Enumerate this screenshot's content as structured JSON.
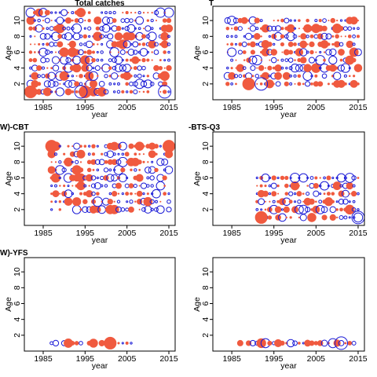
{
  "colors": {
    "positive": "#f05a3f",
    "negative": "#1a1ad6"
  },
  "chart_data": [
    {
      "type": "scatter",
      "title": "Total catches",
      "xlabel": "year",
      "ylabel": "Age",
      "xticks": [
        1985,
        1995,
        2005,
        2015
      ],
      "yticks": [
        2,
        4,
        6,
        8,
        10
      ],
      "xlim": [
        1980.5,
        2016.5
      ],
      "ylim": [
        0,
        11.8
      ],
      "years": [
        1982,
        2015
      ],
      "ages": [
        1,
        11
      ],
      "density": 0.9,
      "posprob": 0.5,
      "seed": 11,
      "big": [
        [
          1982,
          1,
          1
        ],
        [
          1995,
          1,
          1
        ],
        [
          2014,
          1,
          -1
        ],
        [
          1994,
          1,
          -1
        ]
      ]
    },
    {
      "type": "scatter",
      "title": "T",
      "xlabel": "year",
      "ylabel": "Age",
      "xticks": [
        1985,
        1995,
        2005,
        2015
      ],
      "yticks": [
        2,
        4,
        6,
        8,
        10
      ],
      "xlim": [
        1980.5,
        2016.5
      ],
      "ylim": [
        0,
        11.8
      ],
      "years": [
        1984,
        2015
      ],
      "ages": [
        2,
        10
      ],
      "density": 0.85,
      "posprob": 0.55,
      "seed": 23,
      "big": [
        [
          1989,
          2,
          1
        ],
        [
          1992,
          2,
          -1
        ]
      ]
    },
    {
      "type": "scatter",
      "title": "W)-CBT",
      "xlabel": "year",
      "ylabel": "Age",
      "xticks": [
        1985,
        1995,
        2005,
        2015
      ],
      "yticks": [
        2,
        4,
        6,
        8,
        10
      ],
      "xlim": [
        1980.5,
        2016.5
      ],
      "ylim": [
        0,
        11.8
      ],
      "years": [
        1987,
        2015
      ],
      "ages": [
        2,
        10
      ],
      "density": 0.85,
      "posprob": 0.55,
      "seed": 37,
      "big": [
        [
          1987,
          10,
          1
        ],
        [
          2015,
          10,
          1
        ]
      ]
    },
    {
      "type": "scatter",
      "title": "-BTS-Q3",
      "xlabel": "year",
      "ylabel": "Age",
      "xticks": [
        1985,
        1995,
        2005,
        2015
      ],
      "yticks": [
        2,
        4,
        6,
        8,
        10
      ],
      "xlim": [
        1980.5,
        2016.5
      ],
      "ylim": [
        0,
        11.8
      ],
      "years": [
        1991,
        2015
      ],
      "ages": [
        1,
        6
      ],
      "density": 0.85,
      "posprob": 0.5,
      "seed": 53,
      "big": [
        [
          2015,
          1,
          -1
        ],
        [
          1992,
          1,
          1
        ]
      ]
    },
    {
      "type": "scatter",
      "title": "W)-YFS",
      "xlabel": "year",
      "ylabel": "Age",
      "xticks": [
        1985,
        1995,
        2005,
        2015
      ],
      "yticks": [
        2,
        4,
        6,
        8,
        10
      ],
      "xlim": [
        1980.5,
        2016.5
      ],
      "ylim": [
        0,
        11.8
      ],
      "years": [
        1987,
        2006
      ],
      "ages": [
        1,
        1
      ],
      "density": 0.9,
      "posprob": 0.5,
      "seed": 71,
      "big": [
        [
          2001,
          1,
          1
        ]
      ]
    },
    {
      "type": "scatter",
      "title": "",
      "xlabel": "year",
      "ylabel": "Age",
      "xticks": [
        1985,
        1995,
        2005,
        2015
      ],
      "yticks": [
        2,
        4,
        6,
        8,
        10
      ],
      "xlim": [
        1980.5,
        2016.5
      ],
      "ylim": [
        0,
        11.8
      ],
      "years": [
        1987,
        2014
      ],
      "ages": [
        1,
        1
      ],
      "density": 0.9,
      "posprob": 0.5,
      "seed": 89,
      "big": [
        [
          2011,
          1,
          -1
        ]
      ]
    }
  ]
}
